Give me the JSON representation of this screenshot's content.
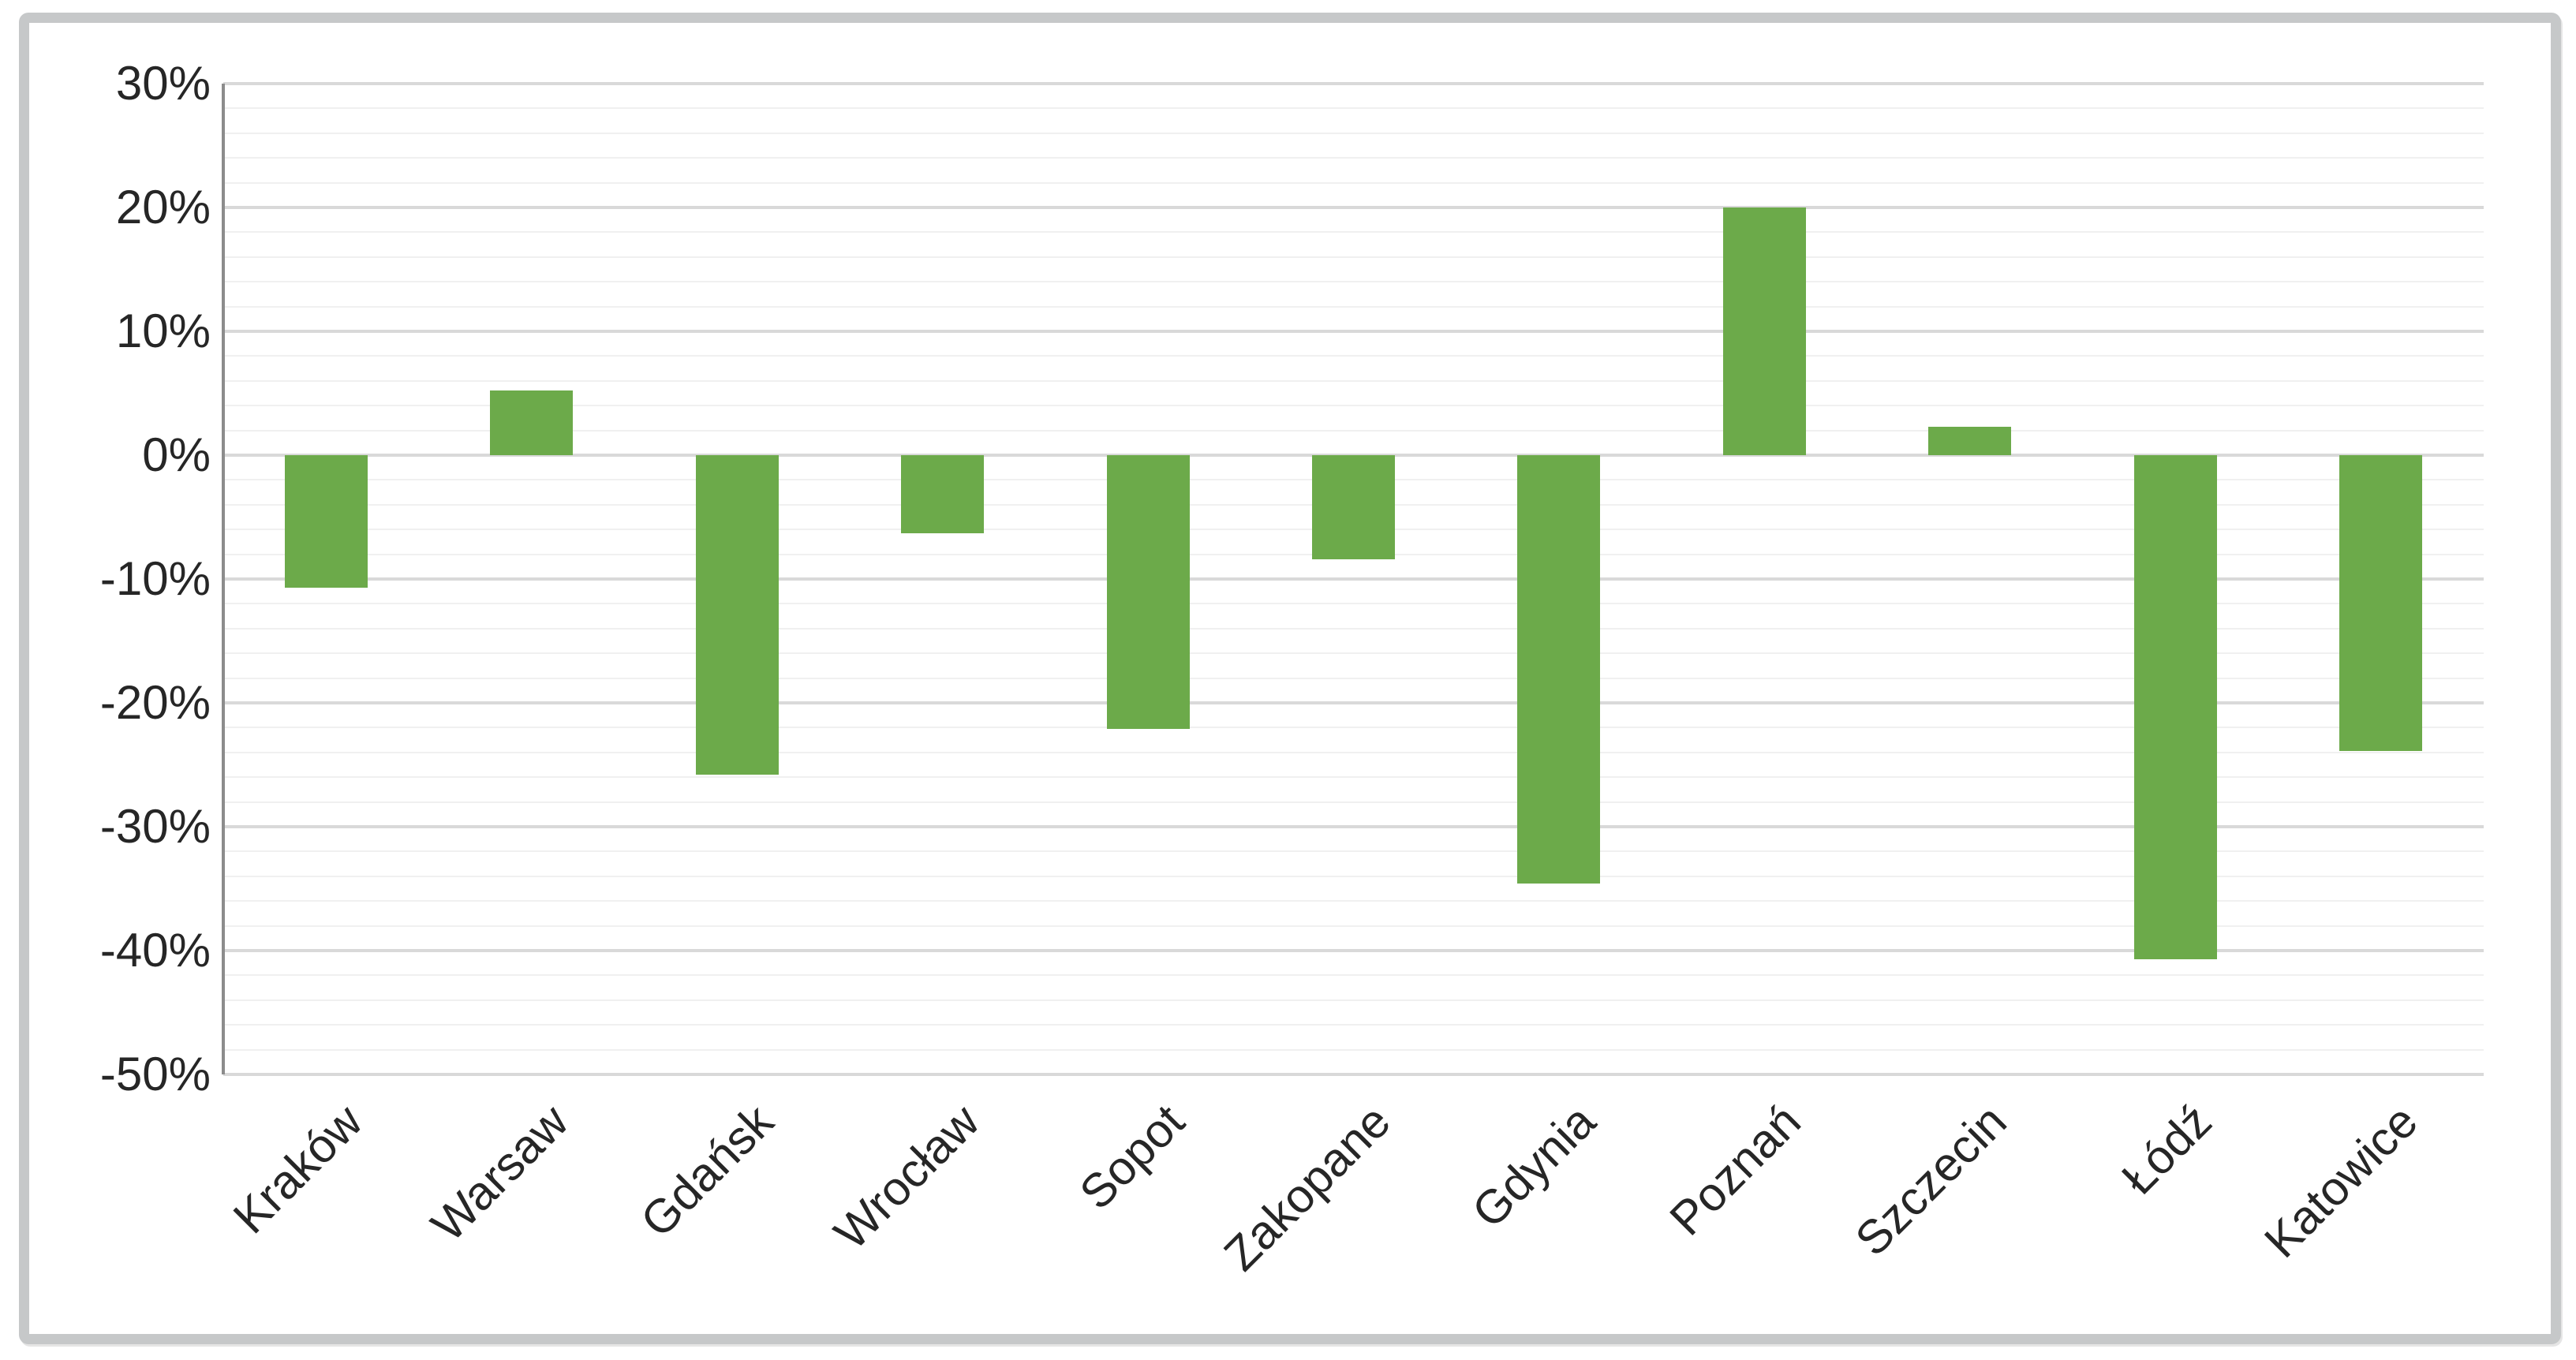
{
  "chart_data": {
    "type": "bar",
    "title": "",
    "xlabel": "",
    "ylabel": "",
    "categories": [
      "Kraków",
      "Warsaw",
      "Gdańsk",
      "Wrocław",
      "Sopot",
      "Zakopane",
      "Gdynia",
      "Poznań",
      "Szczecin",
      "Łódź",
      "Katowice"
    ],
    "values": [
      -10.7,
      5.2,
      -25.8,
      -6.3,
      -22.1,
      -8.4,
      -34.6,
      20,
      2.3,
      -40.7,
      -23.9
    ],
    "value_unit": "%",
    "ylim": [
      -50,
      30
    ],
    "y_major_step": 10,
    "y_minor_step": 2,
    "y_tick_labels": [
      "30%",
      "20%",
      "10%",
      "0%",
      "-10%",
      "-20%",
      "-30%",
      "-40%",
      "-50%"
    ],
    "grid": true,
    "legend": false,
    "colors": {
      "bar": "#6caa4a",
      "major_gridline": "#d9d9d9",
      "minor_gridline": "#f0f0f0",
      "axis_line": "#8c8c8c",
      "tick_text": "#262626",
      "frame_border": "#c6c8c9",
      "background": "#ffffff"
    }
  }
}
